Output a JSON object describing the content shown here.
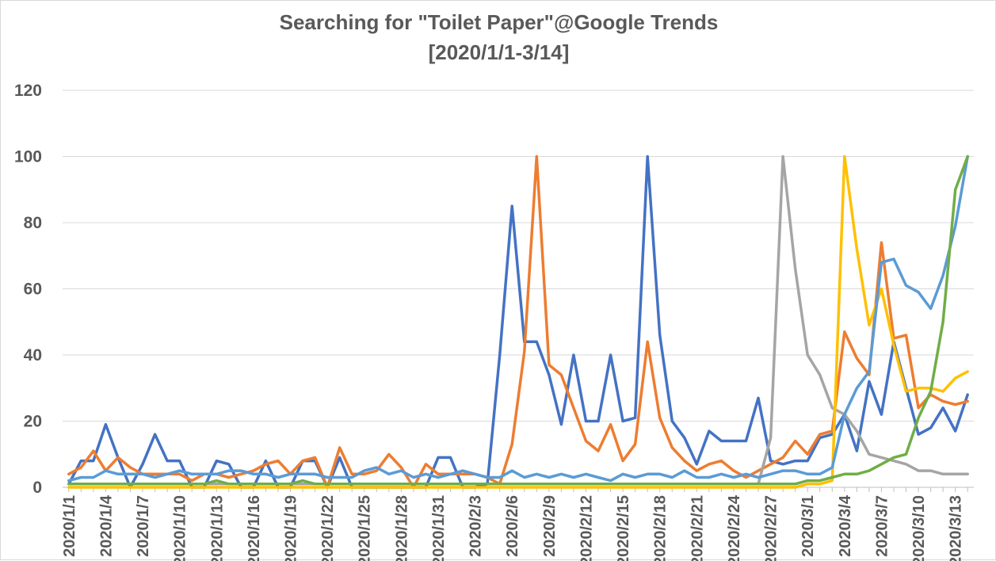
{
  "chart_data": {
    "type": "line",
    "title": "Searching for \"Toilet Paper\"@Google Trends",
    "subtitle": "[2020/1/1-3/14]",
    "xlabel": "",
    "ylabel": "",
    "ylim": [
      0,
      120
    ],
    "yticks": [
      0,
      20,
      40,
      60,
      80,
      100,
      120
    ],
    "grid": true,
    "legend": "none",
    "x": [
      "2020/1/1",
      "2020/1/2",
      "2020/1/3",
      "2020/1/4",
      "2020/1/5",
      "2020/1/6",
      "2020/1/7",
      "2020/1/8",
      "2020/1/9",
      "2020/1/10",
      "2020/1/11",
      "2020/1/12",
      "2020/1/13",
      "2020/1/14",
      "2020/1/15",
      "2020/1/16",
      "2020/1/17",
      "2020/1/18",
      "2020/1/19",
      "2020/1/20",
      "2020/1/21",
      "2020/1/22",
      "2020/1/23",
      "2020/1/24",
      "2020/1/25",
      "2020/1/26",
      "2020/1/27",
      "2020/1/28",
      "2020/1/29",
      "2020/1/30",
      "2020/1/31",
      "2020/2/1",
      "2020/2/2",
      "2020/2/3",
      "2020/2/4",
      "2020/2/5",
      "2020/2/6",
      "2020/2/7",
      "2020/2/8",
      "2020/2/9",
      "2020/2/10",
      "2020/2/11",
      "2020/2/12",
      "2020/2/13",
      "2020/2/14",
      "2020/2/15",
      "2020/2/16",
      "2020/2/17",
      "2020/2/18",
      "2020/2/19",
      "2020/2/20",
      "2020/2/21",
      "2020/2/22",
      "2020/2/23",
      "2020/2/24",
      "2020/2/25",
      "2020/2/26",
      "2020/2/27",
      "2020/2/28",
      "2020/2/29",
      "2020/3/1",
      "2020/3/2",
      "2020/3/3",
      "2020/3/4",
      "2020/3/5",
      "2020/3/6",
      "2020/3/7",
      "2020/3/8",
      "2020/3/9",
      "2020/3/10",
      "2020/3/11",
      "2020/3/12",
      "2020/3/13",
      "2020/3/14"
    ],
    "tick_labels": [
      "2020/1/1",
      "2020/1/4",
      "2020/1/7",
      "2020/1/10",
      "2020/1/13",
      "2020/1/16",
      "2020/1/19",
      "2020/1/22",
      "2020/1/25",
      "2020/1/28",
      "2020/1/31",
      "2020/2/3",
      "2020/2/6",
      "2020/2/9",
      "2020/2/12",
      "2020/2/15",
      "2020/2/18",
      "2020/2/21",
      "2020/2/24",
      "2020/2/27",
      "2020/3/1",
      "2020/3/4",
      "2020/3/7",
      "2020/3/10",
      "2020/3/13"
    ],
    "series": [
      {
        "color": "#4472c4",
        "values": [
          1,
          8,
          8,
          19,
          9,
          0,
          7,
          16,
          8,
          8,
          0,
          0,
          8,
          7,
          0,
          0,
          8,
          0,
          0,
          8,
          8,
          0,
          9,
          0,
          0,
          0,
          0,
          0,
          0,
          0,
          9,
          9,
          0,
          0,
          1,
          40,
          85,
          44,
          44,
          34,
          19,
          40,
          20,
          20,
          40,
          20,
          21,
          100,
          46,
          20,
          15,
          7,
          17,
          14,
          14,
          14,
          27,
          8,
          7,
          8,
          8,
          15,
          16,
          22,
          11,
          32,
          22,
          44,
          30,
          16,
          18,
          24,
          17,
          28
        ]
      },
      {
        "color": "#ed7d31",
        "values": [
          4,
          6,
          11,
          5,
          9,
          6,
          4,
          4,
          4,
          4,
          2,
          4,
          4,
          3,
          4,
          5,
          7,
          8,
          4,
          8,
          9,
          0,
          12,
          4,
          4,
          5,
          10,
          6,
          0,
          7,
          4,
          4,
          4,
          4,
          3,
          1,
          13,
          41,
          100,
          37,
          34,
          24,
          14,
          11,
          19,
          8,
          13,
          44,
          21,
          12,
          8,
          5,
          7,
          8,
          5,
          3,
          5,
          7,
          9,
          14,
          10,
          16,
          17,
          47,
          39,
          34,
          74,
          45,
          46,
          24,
          28,
          26,
          25,
          26
        ]
      },
      {
        "color": "#a5a5a5",
        "values": [
          1,
          1,
          1,
          1,
          1,
          1,
          1,
          1,
          1,
          1,
          1,
          1,
          1,
          1,
          1,
          1,
          1,
          1,
          1,
          1,
          1,
          1,
          1,
          1,
          1,
          1,
          1,
          1,
          1,
          1,
          1,
          1,
          1,
          1,
          1,
          1,
          1,
          1,
          1,
          1,
          1,
          1,
          1,
          1,
          1,
          1,
          1,
          1,
          1,
          1,
          1,
          1,
          1,
          1,
          1,
          1,
          1,
          15,
          100,
          66,
          40,
          34,
          24,
          22,
          17,
          10,
          9,
          8,
          7,
          5,
          5,
          4,
          4,
          4
        ]
      },
      {
        "color": "#ffc000",
        "values": [
          0,
          0,
          0,
          0,
          0,
          0,
          0,
          0,
          0,
          0,
          0,
          0,
          0,
          0,
          0,
          0,
          0,
          0,
          0,
          0,
          0,
          0,
          0,
          0,
          0,
          0,
          0,
          0,
          0,
          0,
          0,
          0,
          0,
          0,
          0,
          0,
          0,
          0,
          0,
          0,
          0,
          0,
          0,
          0,
          0,
          0,
          0,
          0,
          0,
          0,
          0,
          0,
          0,
          0,
          0,
          0,
          0,
          0,
          0,
          0,
          1,
          1,
          2,
          100,
          72,
          49,
          60,
          43,
          29,
          30,
          30,
          29,
          33,
          35
        ]
      },
      {
        "color": "#5b9bd5",
        "values": [
          2,
          3,
          3,
          5,
          4,
          4,
          4,
          3,
          4,
          5,
          4,
          4,
          4,
          5,
          5,
          4,
          4,
          3,
          4,
          4,
          4,
          3,
          3,
          3,
          5,
          6,
          4,
          5,
          3,
          4,
          3,
          4,
          5,
          4,
          3,
          3,
          5,
          3,
          4,
          3,
          4,
          3,
          4,
          3,
          2,
          4,
          3,
          4,
          4,
          3,
          5,
          3,
          3,
          4,
          3,
          4,
          3,
          4,
          5,
          5,
          4,
          4,
          6,
          22,
          30,
          35,
          68,
          69,
          61,
          59,
          54,
          64,
          79,
          100
        ]
      },
      {
        "color": "#70ad47",
        "values": [
          1,
          1,
          1,
          1,
          1,
          1,
          1,
          1,
          1,
          1,
          1,
          1,
          2,
          1,
          1,
          1,
          1,
          1,
          1,
          2,
          1,
          1,
          1,
          1,
          1,
          1,
          1,
          1,
          1,
          1,
          1,
          1,
          1,
          1,
          1,
          1,
          1,
          1,
          1,
          1,
          1,
          1,
          1,
          1,
          1,
          1,
          1,
          1,
          1,
          1,
          1,
          1,
          1,
          1,
          1,
          1,
          1,
          1,
          1,
          1,
          2,
          2,
          3,
          4,
          4,
          5,
          7,
          9,
          10,
          21,
          29,
          50,
          90,
          100
        ]
      }
    ]
  }
}
